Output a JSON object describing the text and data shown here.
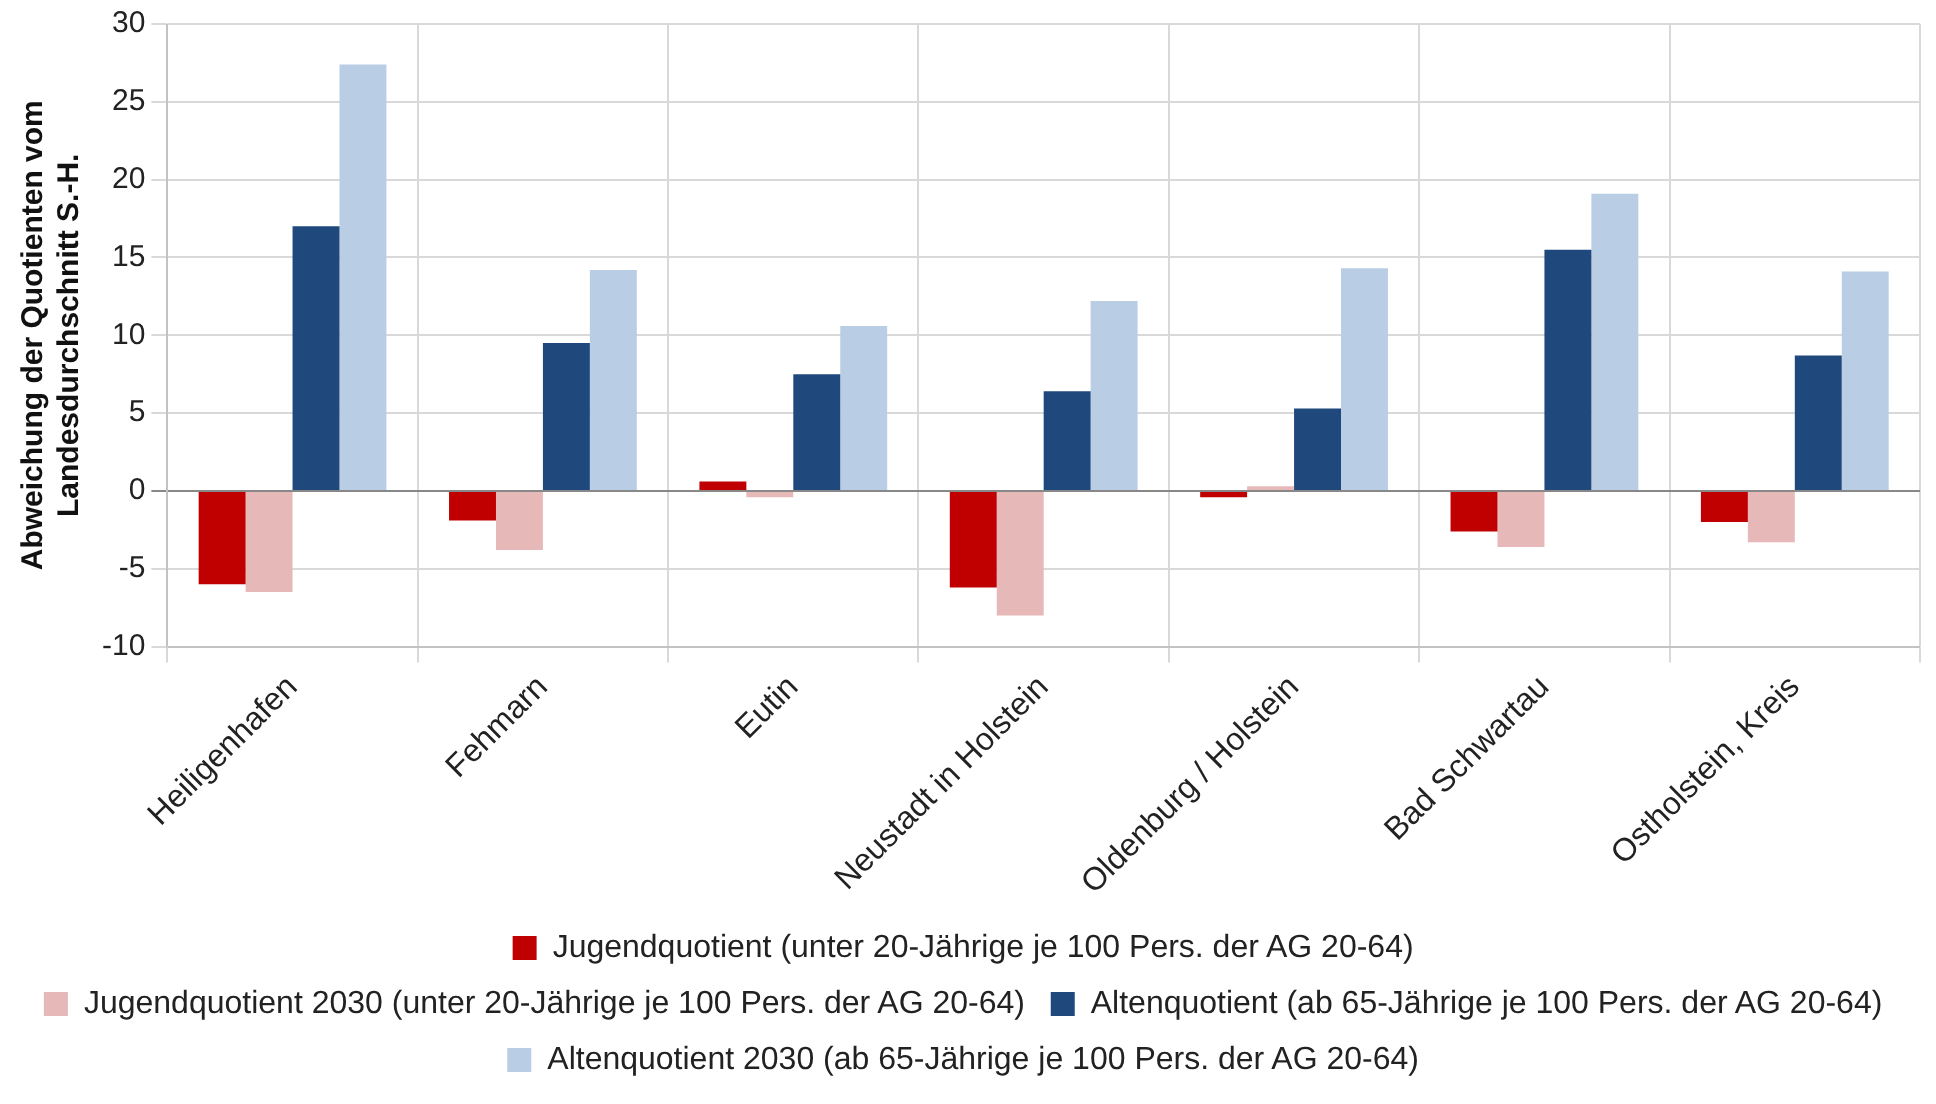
{
  "chart_data": {
    "type": "bar",
    "ylabel": "Abweichung der Quotienten vom\nLandesdurchschnitt S.-H.",
    "categories": [
      "Heiligenhafen",
      "Fehmarn",
      "Eutin",
      "Neustadt in Holstein",
      "Oldenburg / Holstein",
      "Bad Schwartau",
      "Ostholstein, Kreis"
    ],
    "series": [
      {
        "name": "Jugendquotient (unter 20-Jährige je 100 Pers. der AG 20-64)",
        "color": "#c00000",
        "values": [
          -6.0,
          -1.9,
          0.6,
          -6.2,
          -0.4,
          -2.6,
          -2.0
        ]
      },
      {
        "name": "Jugendquotient 2030 (unter 20-Jährige je 100 Pers. der AG 20-64)",
        "color": "#e6b9b8",
        "values": [
          -6.5,
          -3.8,
          -0.4,
          -8.0,
          0.3,
          -3.6,
          -3.3
        ]
      },
      {
        "name": "Altenquotient (ab 65-Jährige je 100 Pers. der AG 20-64)",
        "color": "#1f497d",
        "values": [
          17.0,
          9.5,
          7.5,
          6.4,
          5.3,
          15.5,
          8.7
        ]
      },
      {
        "name": "Altenquotient 2030 (ab 65-Jährige je 100 Pers. der AG 20-64)",
        "color": "#b9cde5",
        "values": [
          27.4,
          14.2,
          10.6,
          12.2,
          14.3,
          19.1,
          14.1
        ]
      }
    ],
    "ylim": [
      -10,
      30
    ],
    "yticks": [
      -10,
      -5,
      0,
      5,
      10,
      15,
      20,
      25,
      30
    ],
    "grid": true,
    "legend": "bottom"
  }
}
